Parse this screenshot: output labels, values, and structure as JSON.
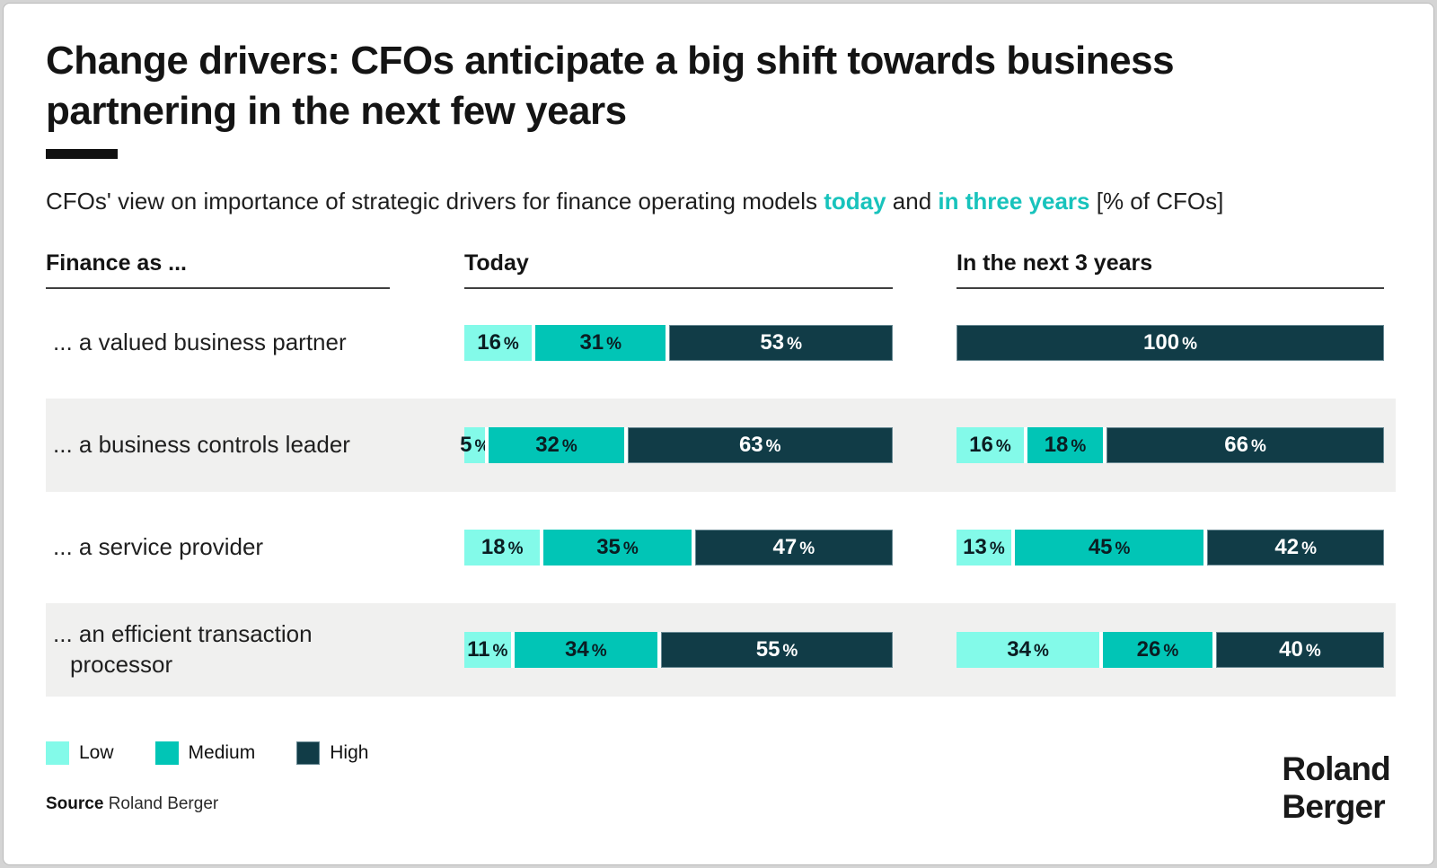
{
  "page": {
    "title": "Change drivers: CFOs anticipate a big shift towards business partnering in the next few years",
    "subtitle_prefix": "CFOs' view on importance of strategic drivers for finance operating models ",
    "subtitle_accent_today": "today",
    "subtitle_and": " and ",
    "subtitle_accent_years": "in three years",
    "subtitle_suffix": " [% of CFOs]",
    "source_word": "Source",
    "source_value": "Roland Berger",
    "logo_line1": "Roland",
    "logo_line2": "Berger"
  },
  "colors": {
    "low": "#83FAE9",
    "medium": "#01C5B6",
    "high": "#113C47",
    "accent": "#18C3BC",
    "band": "#F0F0EF"
  },
  "legend": {
    "items": [
      {
        "label": "Low",
        "level": "low"
      },
      {
        "label": "Medium",
        "level": "medium"
      },
      {
        "label": "High",
        "level": "high"
      }
    ]
  },
  "chart_data": {
    "type": "bar",
    "variant": "horizontal-stacked-paired",
    "title": "Change drivers: CFOs anticipate a big shift towards business partnering in the next few years",
    "subtitle": "CFOs' view on importance of strategic drivers for finance operating models today and in three years [% of CFOs]",
    "unit": "% of CFOs",
    "xlim": [
      0,
      100
    ],
    "levels": [
      "Low",
      "Medium",
      "High"
    ],
    "pct_suffix": "%",
    "group_headers": {
      "rows": "Finance as ...",
      "col1": "Today",
      "col2": "In the next 3 years"
    },
    "rows": [
      {
        "label": "... a valued business partner",
        "today": [
          {
            "level": "low",
            "value": 16
          },
          {
            "level": "medium",
            "value": 31
          },
          {
            "level": "high",
            "value": 53
          }
        ],
        "next3years": [
          {
            "level": "high",
            "value": 100
          }
        ]
      },
      {
        "label": "... a business controls leader",
        "today": [
          {
            "level": "low",
            "value": 5
          },
          {
            "level": "medium",
            "value": 32
          },
          {
            "level": "high",
            "value": 63
          }
        ],
        "next3years": [
          {
            "level": "low",
            "value": 16
          },
          {
            "level": "medium",
            "value": 18
          },
          {
            "level": "high",
            "value": 66
          }
        ]
      },
      {
        "label": "... a service provider",
        "today": [
          {
            "level": "low",
            "value": 18
          },
          {
            "level": "medium",
            "value": 35
          },
          {
            "level": "high",
            "value": 47
          }
        ],
        "next3years": [
          {
            "level": "low",
            "value": 13
          },
          {
            "level": "medium",
            "value": 45
          },
          {
            "level": "high",
            "value": 42
          }
        ]
      },
      {
        "label": "... an efficient transaction processor",
        "today": [
          {
            "level": "low",
            "value": 11
          },
          {
            "level": "medium",
            "value": 34
          },
          {
            "level": "high",
            "value": 55
          }
        ],
        "next3years": [
          {
            "level": "low",
            "value": 34
          },
          {
            "level": "medium",
            "value": 26
          },
          {
            "level": "high",
            "value": 40
          }
        ]
      }
    ]
  }
}
